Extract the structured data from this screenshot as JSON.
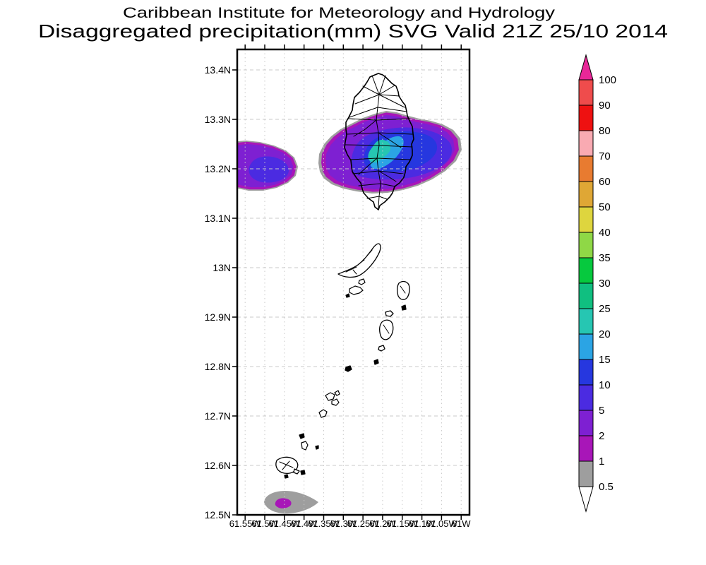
{
  "title": {
    "line1": "Caribbean Institute for Meteorology and Hydrology",
    "line2": "Disaggregated precipitation(mm) SVG Valid 21Z 25/10 2014"
  },
  "map": {
    "lat_labels": [
      "13.4N",
      "13.3N",
      "13.2N",
      "13.1N",
      "13N",
      "12.9N",
      "12.8N",
      "12.7N",
      "12.6N",
      "12.5N"
    ],
    "lon_labels": [
      "61.55W",
      "61.5W",
      "61.45W",
      "61.4W",
      "61.35W",
      "61.3W",
      "61.25W",
      "61.2W",
      "61.15W",
      "61.1W",
      "61.05W",
      "61W"
    ]
  },
  "colorbar": {
    "unit": "mm",
    "boundary_labels": [
      "0.5",
      "1",
      "2",
      "5",
      "10",
      "15",
      "20",
      "25",
      "30",
      "35",
      "40",
      "50",
      "60",
      "70",
      "80",
      "90",
      "100"
    ],
    "segment_colors": [
      "#9e9e9e",
      "#a816b8",
      "#7e20d2",
      "#4b2be1",
      "#2637df",
      "#2ba4e4",
      "#26c6b2",
      "#10bf80",
      "#06c93e",
      "#8fd846",
      "#ded53e",
      "#dfa735",
      "#e87b30",
      "#f9aab2",
      "#ee1111",
      "#ef4c4c"
    ],
    "over_arrow_color": "#e82798",
    "under_arrow_color": "#ffffff"
  },
  "grid_color": "#c9c9c9"
}
